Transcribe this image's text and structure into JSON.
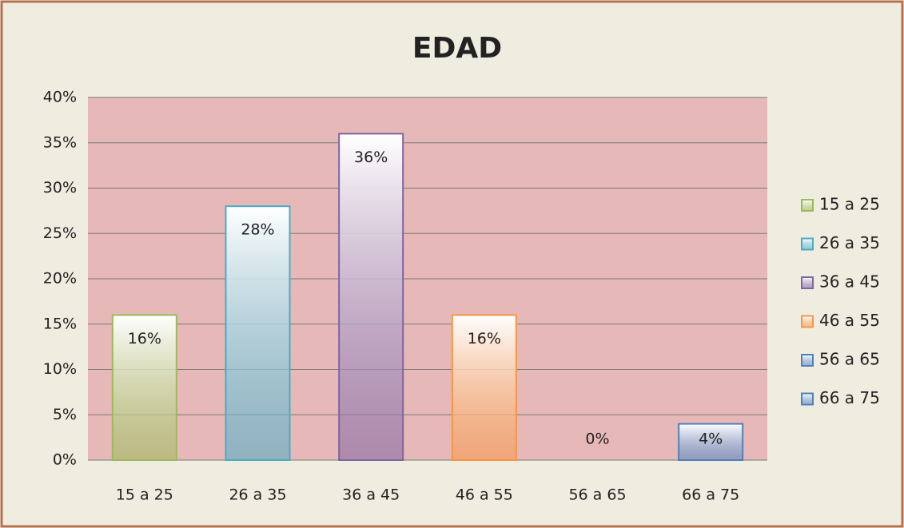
{
  "chart_data": {
    "type": "bar",
    "title": "EDAD",
    "categories": [
      "15 a 25",
      "26 a 35",
      "36 a 45",
      "46 a 55",
      "56 a 65",
      "66 a 75"
    ],
    "values": [
      16,
      28,
      36,
      16,
      0,
      4
    ],
    "value_labels": [
      "16%",
      "28%",
      "36%",
      "16%",
      "0%",
      "4%"
    ],
    "colors": [
      "#9bbb59",
      "#4bacc6",
      "#8064a2",
      "#f79646",
      "#4f81bd",
      "#4f81bd"
    ],
    "ylim": [
      0,
      40
    ],
    "yticks": [
      {
        "value": 0,
        "label": "0%"
      },
      {
        "value": 5,
        "label": "5%"
      },
      {
        "value": 10,
        "label": "10%"
      },
      {
        "value": 15,
        "label": "15%"
      },
      {
        "value": 20,
        "label": "20%"
      },
      {
        "value": 25,
        "label": "25%"
      },
      {
        "value": 30,
        "label": "30%"
      },
      {
        "value": 35,
        "label": "35%"
      },
      {
        "value": 40,
        "label": "40%"
      }
    ],
    "grid": true,
    "legend": "right"
  }
}
